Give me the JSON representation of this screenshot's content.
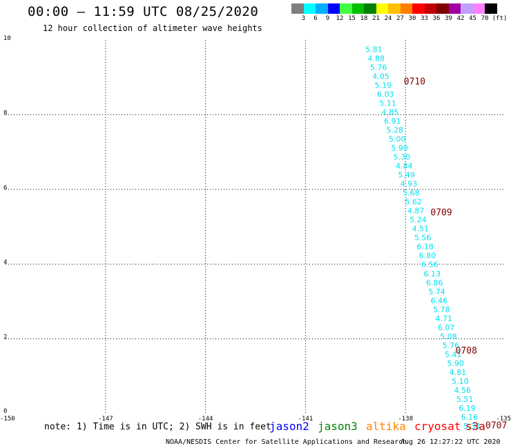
{
  "header": {
    "title": "00:00 – 11:59 UTC 08/25/2020",
    "subtitle": "12 hour collection of altimeter wave heights"
  },
  "scale": {
    "colors": [
      "#7f7f7f",
      "#00ffff",
      "#00b0ff",
      "#0000ff",
      "#40ff40",
      "#00c000",
      "#008000",
      "#ffff00",
      "#ffc000",
      "#ff8000",
      "#ff0000",
      "#c00000",
      "#800000",
      "#a000a0",
      "#c0a0ff",
      "#ff80ff",
      "#000000"
    ],
    "labels": [
      "3",
      "6",
      "9",
      "12",
      "15",
      "18",
      "21",
      "24",
      "27",
      "30",
      "33",
      "36",
      "39",
      "42",
      "45",
      "70"
    ],
    "unit": "(ft)"
  },
  "chart_data": {
    "type": "scatter",
    "xlim": [
      -150,
      -135
    ],
    "ylim": [
      0,
      10
    ],
    "x_ticks": [
      "-150",
      "-147",
      "-144",
      "-141",
      "-138",
      "-135"
    ],
    "x_tick_values": [
      -150,
      -147,
      -144,
      -141,
      -138,
      -135
    ],
    "y_ticks": [
      "0",
      "2",
      "4",
      "6",
      "8",
      "10"
    ],
    "y_tick_values": [
      0,
      2,
      4,
      6,
      8,
      10
    ],
    "grid": true,
    "point_color": "#00e0f0",
    "series": [
      {
        "points": [
          {
            "x": -138.95,
            "y": 9.75,
            "label": "5.81"
          },
          {
            "x": -138.88,
            "y": 9.51,
            "label": "4.88"
          },
          {
            "x": -138.81,
            "y": 9.27,
            "label": "5.76"
          },
          {
            "x": -138.74,
            "y": 9.03,
            "label": "4.05"
          },
          {
            "x": -138.67,
            "y": 8.79,
            "label": "5.19"
          },
          {
            "x": -138.6,
            "y": 8.55,
            "label": "6.03"
          },
          {
            "x": -138.53,
            "y": 8.31,
            "label": "5.11"
          },
          {
            "x": -138.46,
            "y": 8.07,
            "label": "4.85"
          },
          {
            "x": -138.39,
            "y": 7.83,
            "label": "6.91"
          },
          {
            "x": -138.32,
            "y": 7.59,
            "label": "5.28"
          },
          {
            "x": -138.25,
            "y": 7.35,
            "label": "5.00"
          },
          {
            "x": -138.18,
            "y": 7.11,
            "label": "5.90"
          },
          {
            "x": -138.11,
            "y": 6.87,
            "label": "5.30"
          },
          {
            "x": -138.04,
            "y": 6.63,
            "label": "4.84"
          },
          {
            "x": -137.97,
            "y": 6.39,
            "label": "5.49"
          },
          {
            "x": -137.9,
            "y": 6.15,
            "label": "4.93"
          },
          {
            "x": -137.83,
            "y": 5.91,
            "label": "5.68"
          },
          {
            "x": -137.76,
            "y": 5.67,
            "label": "5.62"
          },
          {
            "x": -137.69,
            "y": 5.43,
            "label": "4.87"
          },
          {
            "x": -137.62,
            "y": 5.19,
            "label": "5.24"
          },
          {
            "x": -137.55,
            "y": 4.95,
            "label": "4.51"
          },
          {
            "x": -137.48,
            "y": 4.71,
            "label": "5.56"
          },
          {
            "x": -137.41,
            "y": 4.47,
            "label": "6.18"
          },
          {
            "x": -137.34,
            "y": 4.23,
            "label": "6.80"
          },
          {
            "x": -137.27,
            "y": 3.99,
            "label": "6.56"
          },
          {
            "x": -137.2,
            "y": 3.75,
            "label": "6.13"
          },
          {
            "x": -137.13,
            "y": 3.51,
            "label": "6.86"
          },
          {
            "x": -137.06,
            "y": 3.27,
            "label": "5.74"
          },
          {
            "x": -136.99,
            "y": 3.03,
            "label": "6.46"
          },
          {
            "x": -136.92,
            "y": 2.79,
            "label": "5.78"
          },
          {
            "x": -136.85,
            "y": 2.55,
            "label": "4.71"
          },
          {
            "x": -136.78,
            "y": 2.31,
            "label": "6.07"
          },
          {
            "x": -136.71,
            "y": 2.07,
            "label": "5.08"
          },
          {
            "x": -136.64,
            "y": 1.83,
            "label": "5.76"
          },
          {
            "x": -136.57,
            "y": 1.59,
            "label": "5.41"
          },
          {
            "x": -136.5,
            "y": 1.35,
            "label": "5.90"
          },
          {
            "x": -136.43,
            "y": 1.11,
            "label": "4.81"
          },
          {
            "x": -136.36,
            "y": 0.87,
            "label": "5.10"
          },
          {
            "x": -136.29,
            "y": 0.63,
            "label": "4.56"
          },
          {
            "x": -136.22,
            "y": 0.39,
            "label": "5.51"
          },
          {
            "x": -136.15,
            "y": 0.15,
            "label": "6.19"
          },
          {
            "x": -136.08,
            "y": -0.09,
            "label": "6.16"
          },
          {
            "x": -136.01,
            "y": -0.33,
            "label": "5.33"
          }
        ]
      }
    ],
    "annotations": [
      {
        "x": -138.05,
        "y": 8.9,
        "text": "0710",
        "color": "#800000"
      },
      {
        "x": -137.25,
        "y": 5.4,
        "text": "0709",
        "color": "#800000"
      },
      {
        "x": -136.5,
        "y": 1.7,
        "text": "0708",
        "color": "#800000"
      },
      {
        "x": -135.6,
        "y": -0.3,
        "text": "0707",
        "color": "#800000"
      }
    ]
  },
  "footer": {
    "note": "note: 1) Time is in UTC; 2) SWH is in feet",
    "satellites": [
      {
        "name": "jason2",
        "color": "#0000ff"
      },
      {
        "name": "jason3",
        "color": "#008000"
      },
      {
        "name": "altika",
        "color": "#ff8000"
      },
      {
        "name": "cryosat",
        "color": "#ff0000"
      },
      {
        "name": "s3a",
        "color": "#c00000"
      }
    ],
    "credit": "NOAA/NESDIS Center for Satellite Applications and Research",
    "timestamp": "Aug 26 12:27:22 UTC 2020"
  }
}
